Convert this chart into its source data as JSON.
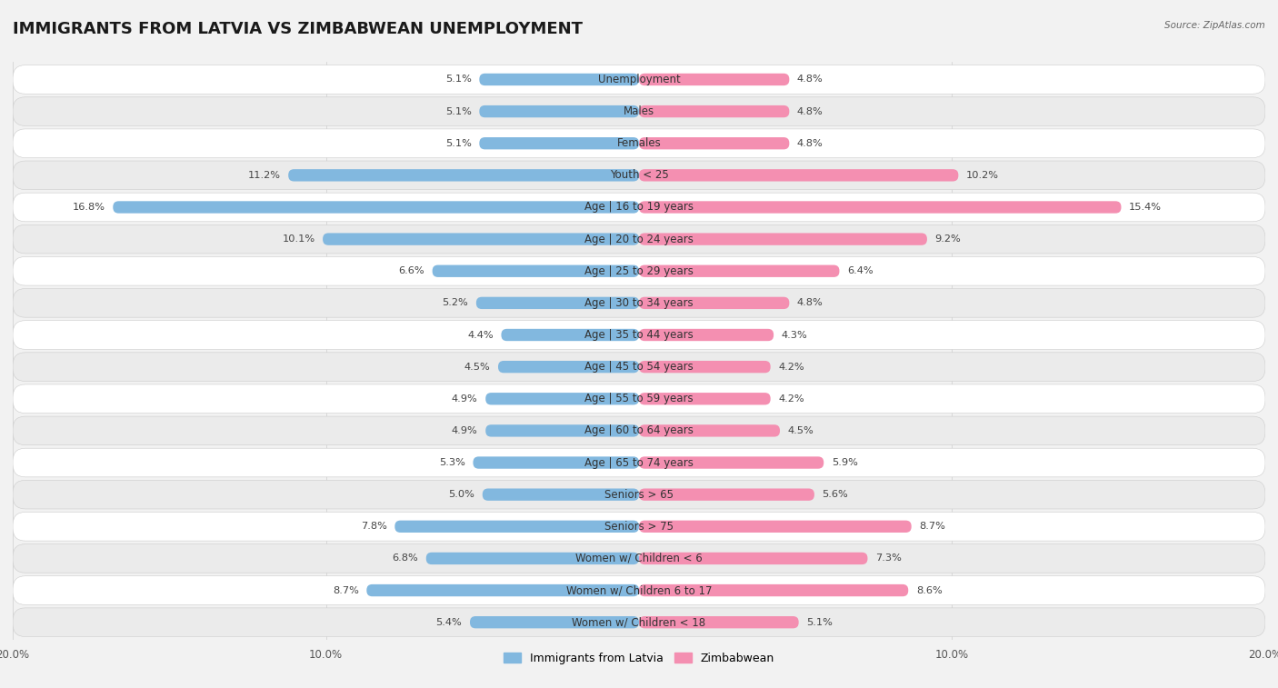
{
  "title": "IMMIGRANTS FROM LATVIA VS ZIMBABWEAN UNEMPLOYMENT",
  "source": "Source: ZipAtlas.com",
  "categories": [
    "Unemployment",
    "Males",
    "Females",
    "Youth < 25",
    "Age | 16 to 19 years",
    "Age | 20 to 24 years",
    "Age | 25 to 29 years",
    "Age | 30 to 34 years",
    "Age | 35 to 44 years",
    "Age | 45 to 54 years",
    "Age | 55 to 59 years",
    "Age | 60 to 64 years",
    "Age | 65 to 74 years",
    "Seniors > 65",
    "Seniors > 75",
    "Women w/ Children < 6",
    "Women w/ Children 6 to 17",
    "Women w/ Children < 18"
  ],
  "latvia_values": [
    5.1,
    5.1,
    5.1,
    11.2,
    16.8,
    10.1,
    6.6,
    5.2,
    4.4,
    4.5,
    4.9,
    4.9,
    5.3,
    5.0,
    7.8,
    6.8,
    8.7,
    5.4
  ],
  "zimbabwe_values": [
    4.8,
    4.8,
    4.8,
    10.2,
    15.4,
    9.2,
    6.4,
    4.8,
    4.3,
    4.2,
    4.2,
    4.5,
    5.9,
    5.6,
    8.7,
    7.3,
    8.6,
    5.1
  ],
  "latvia_color": "#82b8df",
  "zimbabwe_color": "#f48fb1",
  "latvia_label": "Immigrants from Latvia",
  "zimbabwe_label": "Zimbabwean",
  "background_color": "#f2f2f2",
  "row_color_odd": "#ffffff",
  "row_color_even": "#ebebeb",
  "xlim": 20.0,
  "bar_height": 0.38,
  "title_fontsize": 13,
  "label_fontsize": 8.5,
  "value_fontsize": 8.2,
  "legend_fontsize": 9,
  "axis_tick_fontsize": 8.5
}
